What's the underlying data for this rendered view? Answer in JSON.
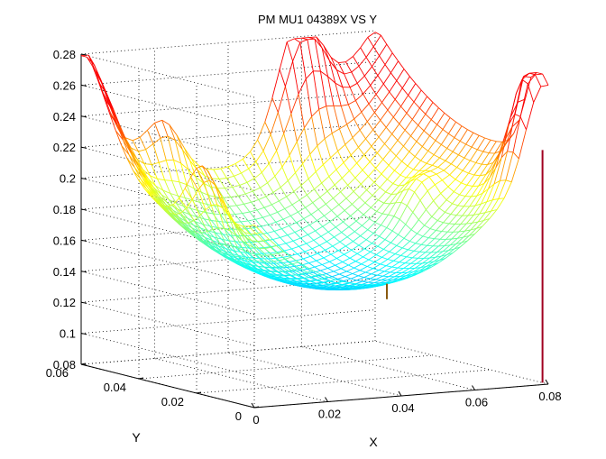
{
  "chart_data": {
    "type": "surface",
    "title": "PM MU1 04389X VS Y",
    "xlabel": "X",
    "ylabel": "Y",
    "zlabel": "",
    "xlim": [
      0,
      0.08
    ],
    "ylim": [
      0,
      0.06
    ],
    "zlim": [
      0.08,
      0.28
    ],
    "x_ticks": [
      "0",
      "0.02",
      "0.04",
      "0.06",
      "0.08"
    ],
    "y_ticks": [
      "0",
      "0.02",
      "0.04",
      "0.06"
    ],
    "z_ticks": [
      "0.08",
      "0.1",
      "0.12",
      "0.14",
      "0.16",
      "0.18",
      "0.2",
      "0.22",
      "0.24",
      "0.26",
      "0.28"
    ],
    "grid": true,
    "colormap": "jet",
    "color_range": [
      0.14,
      0.25
    ],
    "surface_min": 0.143,
    "peaks_approx": [
      {
        "x": 0.0,
        "y": 0.06,
        "z": 0.265
      },
      {
        "x": 0.06,
        "y": 0.06,
        "z": 0.275
      },
      {
        "x": 0.078,
        "y": 0.005,
        "z": 0.255
      },
      {
        "x": 0.0,
        "y": 0.02,
        "z": 0.25
      }
    ],
    "spikes_approx": [
      {
        "x": 0.08,
        "y": 0.002,
        "z_from": 0.23,
        "z_to": 0.08
      },
      {
        "x": 0.04,
        "y": 0.005,
        "z_from": 0.15,
        "z_to": 0.14
      }
    ]
  }
}
